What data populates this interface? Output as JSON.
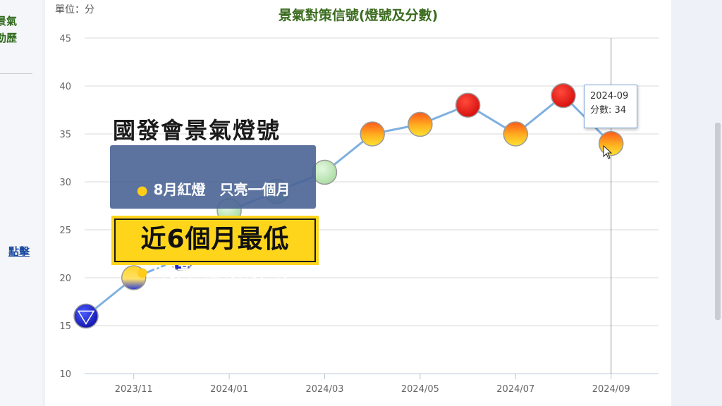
{
  "sidebar": {
    "fragment_lines": [
      "景氣",
      "勁歷"
    ],
    "link_fragment": "點擊"
  },
  "chart_data": {
    "type": "line",
    "title": "景氣對策信號(燈號及分數)",
    "unit_label": "單位：分",
    "ylim": [
      10,
      45
    ],
    "yticks": [
      10,
      15,
      20,
      25,
      30,
      35,
      40,
      45
    ],
    "x": [
      "2023-10",
      "2023-11",
      "2023-12",
      "2024-01",
      "2024-02",
      "2024-03",
      "2024-04",
      "2024-05",
      "2024-06",
      "2024-07",
      "2024-08",
      "2024-09"
    ],
    "xtick_labels": [
      "2023/11",
      "2024/01",
      "2024/03",
      "2024/05",
      "2024/07",
      "2024/09"
    ],
    "xtick_indices": [
      1,
      3,
      5,
      7,
      9,
      11
    ],
    "values": [
      16,
      20,
      22,
      27,
      29,
      31,
      35,
      36,
      38,
      35,
      39,
      34
    ],
    "marker_types": [
      "blue",
      "yellow-blue",
      "blue",
      "green",
      "green",
      "green",
      "yellow-red",
      "yellow-red",
      "red",
      "yellow-red",
      "red",
      "yellow-red"
    ],
    "grid": true,
    "line_color": "#7fb0e0",
    "crosshair_index": 11,
    "tooltip": {
      "date": "2024-09",
      "score_label": "分數: 34"
    }
  },
  "overlay": {
    "title": "國發會景氣燈號",
    "bullets": [
      "8月紅燈　只亮一個月",
      "9月黃紅燈 分數掉5分"
    ],
    "highlight": "近6個月最低",
    "bullet_color": "#ffcc1c",
    "highlight_bg": "#ffd51c"
  }
}
